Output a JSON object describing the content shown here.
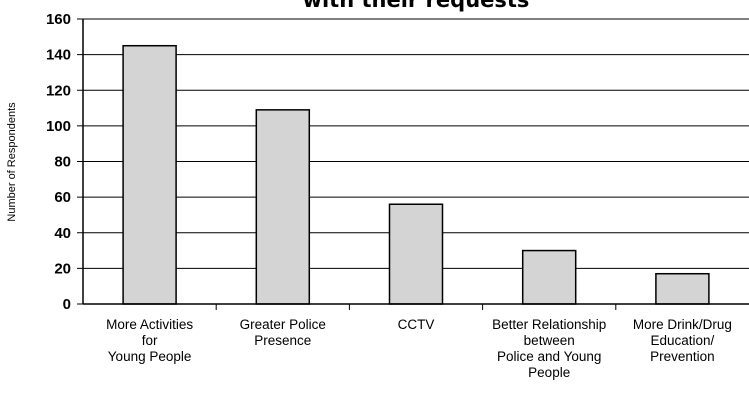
{
  "chart_data": {
    "type": "bar",
    "title": "with their requests",
    "xlabel": "",
    "ylabel": "Number of Respondents",
    "ylim": [
      0,
      160
    ],
    "yticks": [
      0,
      20,
      40,
      60,
      80,
      100,
      120,
      140,
      160
    ],
    "grid": true,
    "legend": "none",
    "categories": [
      "More Activities for Young People",
      "Greater Police Presence",
      "CCTV",
      "Better Relationship between Police and Young People",
      "More Drink/Drug Education/ Prevention"
    ],
    "category_lines": [
      [
        "More Activities",
        "for",
        "Young People"
      ],
      [
        "Greater Police",
        "Presence"
      ],
      [
        "CCTV"
      ],
      [
        "Better Relationship",
        "between",
        "Police and Young",
        "People"
      ],
      [
        "More Drink/Drug",
        "Education/",
        "Prevention"
      ]
    ],
    "values": [
      145,
      109,
      56,
      30,
      17
    ],
    "colors": {
      "bar_fill": "#d4d4d4",
      "bar_stroke": "#000000",
      "grid": "#000000",
      "axis": "#000000"
    }
  }
}
